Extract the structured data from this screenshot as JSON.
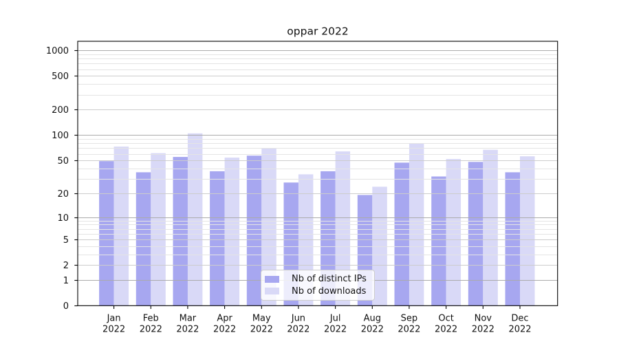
{
  "title": "oppar 2022",
  "colors": {
    "background": "#ffffff",
    "text": "#111111",
    "axis": "#000000"
  },
  "chart_data": {
    "type": "bar",
    "title": "oppar 2022",
    "categories": [
      "Jan 2022",
      "Feb 2022",
      "Mar 2022",
      "Apr 2022",
      "May 2022",
      "Jun 2022",
      "Jul 2022",
      "Aug 2022",
      "Sep 2022",
      "Oct 2022",
      "Nov 2022",
      "Dec 2022"
    ],
    "x_tick_month_lines": [
      "Jan",
      "Feb",
      "Mar",
      "Apr",
      "May",
      "Jun",
      "Jul",
      "Aug",
      "Sep",
      "Oct",
      "Nov",
      "Dec"
    ],
    "x_tick_year_line": "2022",
    "series": [
      {
        "name": "Nb of distinct IPs",
        "color": "#a7a7f0",
        "values": [
          49,
          36,
          55,
          37,
          57,
          27,
          37,
          19,
          47,
          32,
          48,
          36
        ]
      },
      {
        "name": "Nb of downloads",
        "color": "#d9d9f7",
        "values": [
          73,
          61,
          105,
          54,
          70,
          34,
          64,
          24,
          80,
          52,
          67,
          56
        ]
      }
    ],
    "xlabel": "",
    "ylabel": "",
    "yscale": "log1p",
    "ylim": [
      0,
      1280
    ],
    "yticks": [
      0,
      1,
      2,
      5,
      10,
      20,
      50,
      100,
      200,
      500,
      1000
    ],
    "grid": {
      "major_values": [
        1,
        10,
        100,
        1000
      ],
      "mid_values": [
        2,
        5,
        20,
        50,
        200,
        500
      ],
      "minor_values": [
        3,
        4,
        6,
        7,
        8,
        9,
        30,
        40,
        60,
        70,
        80,
        90,
        300,
        400,
        600,
        700,
        800,
        900
      ],
      "major_color": "#ababab",
      "mid_color": "#cccccc",
      "minor_color": "#e4e4e4"
    },
    "legend_position": "lower center"
  }
}
